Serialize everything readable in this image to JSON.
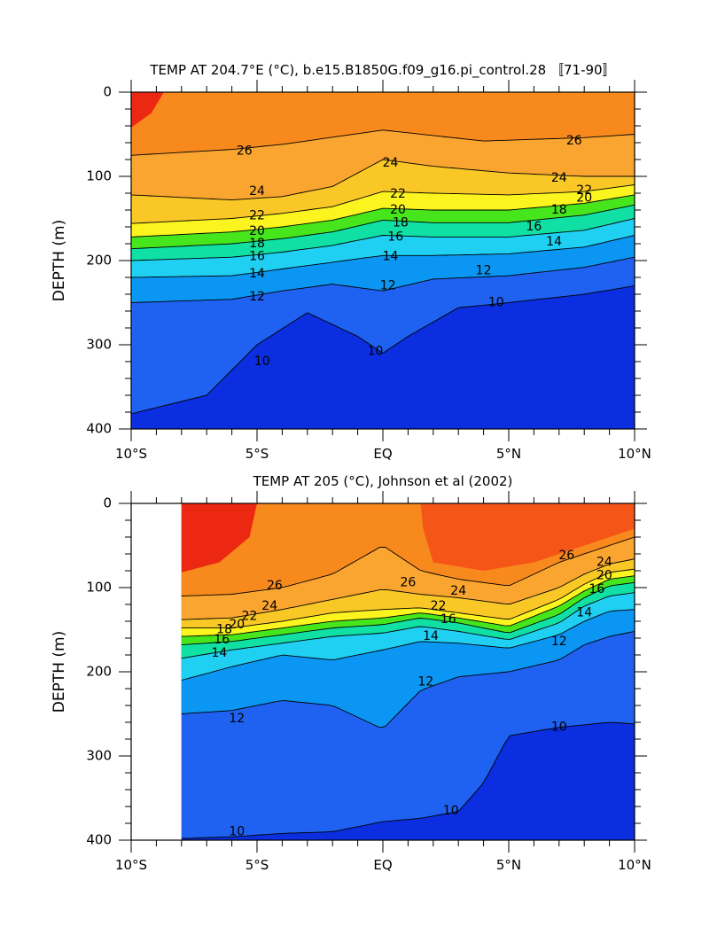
{
  "chart_data": [
    {
      "type": "heatmap",
      "title": "TEMP AT 204.7°E (°C), b.e15.B1850G.f09_g16.pi_control.28 〚71-90〛",
      "ylabel": "DEPTH (m)",
      "xlabel": "",
      "xlim": [
        -10,
        10
      ],
      "ylim": [
        400,
        0
      ],
      "x_ticks": [
        -10,
        -5,
        0,
        5,
        10
      ],
      "x_tick_labels": [
        "10°S",
        "5°S",
        "EQ",
        "5°N",
        "10°N"
      ],
      "y_ticks": [
        0,
        100,
        200,
        300,
        400
      ],
      "y_tick_labels": [
        "0",
        "100",
        "200",
        "300",
        "400"
      ],
      "data_xrange": [
        -10,
        10
      ],
      "contour_levels": [
        10,
        12,
        14,
        16,
        18,
        20,
        22,
        24,
        26
      ],
      "labeled_isotherms": [
        {
          "value": 26,
          "x": [
            -10,
            -6,
            -4,
            0,
            4,
            8,
            10
          ],
          "depth": [
            75,
            68,
            62,
            45,
            58,
            54,
            50
          ]
        },
        {
          "value": 24,
          "x": [
            -10,
            -6,
            -4,
            -2,
            0,
            2,
            5,
            8,
            10
          ],
          "depth": [
            122,
            128,
            124,
            112,
            80,
            88,
            96,
            100,
            100
          ]
        },
        {
          "value": 22,
          "x": [
            -10,
            -6,
            -4,
            -2,
            0,
            2,
            5,
            8,
            10
          ],
          "depth": [
            156,
            150,
            144,
            136,
            118,
            120,
            122,
            118,
            110
          ]
        },
        {
          "value": 20,
          "x": [
            -10,
            -6,
            -4,
            -2,
            0,
            2,
            5,
            8,
            10
          ],
          "depth": [
            172,
            166,
            160,
            152,
            138,
            140,
            140,
            132,
            122
          ]
        },
        {
          "value": 18,
          "x": [
            -10,
            -6,
            -4,
            -2,
            0,
            2,
            5,
            8,
            10
          ],
          "depth": [
            186,
            180,
            174,
            166,
            152,
            155,
            155,
            146,
            134
          ]
        },
        {
          "value": 16,
          "x": [
            -10,
            -6,
            -4,
            -2,
            0,
            2,
            5,
            8,
            10
          ],
          "depth": [
            200,
            196,
            190,
            182,
            170,
            172,
            172,
            164,
            150
          ]
        },
        {
          "value": 14,
          "x": [
            -10,
            -6,
            -4,
            -2,
            0,
            2,
            5,
            8,
            10
          ],
          "depth": [
            220,
            218,
            210,
            202,
            194,
            194,
            192,
            184,
            170
          ]
        },
        {
          "value": 12,
          "x": [
            -10,
            -6,
            -4,
            -2,
            0,
            2,
            5,
            8,
            10
          ],
          "depth": [
            250,
            246,
            236,
            228,
            236,
            222,
            218,
            208,
            196
          ]
        },
        {
          "value": 10,
          "x": [
            -10,
            -7,
            -5,
            -3,
            -1,
            0,
            1,
            3,
            5,
            8,
            10
          ],
          "depth": [
            382,
            360,
            300,
            262,
            290,
            310,
            290,
            256,
            250,
            240,
            230
          ]
        }
      ],
      "contour_labels": [
        {
          "text": "26",
          "x": -5.5,
          "depth": 70
        },
        {
          "text": "24",
          "x": -5.0,
          "depth": 118
        },
        {
          "text": "22",
          "x": -5.0,
          "depth": 147
        },
        {
          "text": "20",
          "x": -5.0,
          "depth": 165
        },
        {
          "text": "18",
          "x": -5.0,
          "depth": 180
        },
        {
          "text": "16",
          "x": -5.0,
          "depth": 195
        },
        {
          "text": "14",
          "x": -5.0,
          "depth": 216
        },
        {
          "text": "12",
          "x": -5.0,
          "depth": 243
        },
        {
          "text": "10",
          "x": -4.8,
          "depth": 320
        },
        {
          "text": "24",
          "x": 0.3,
          "depth": 84
        },
        {
          "text": "22",
          "x": 0.6,
          "depth": 121
        },
        {
          "text": "20",
          "x": 0.6,
          "depth": 140
        },
        {
          "text": "18",
          "x": 0.7,
          "depth": 155
        },
        {
          "text": "16",
          "x": 0.5,
          "depth": 172
        },
        {
          "text": "14",
          "x": 0.3,
          "depth": 195
        },
        {
          "text": "12",
          "x": 0.2,
          "depth": 230
        },
        {
          "text": "10",
          "x": -0.3,
          "depth": 308
        },
        {
          "text": "12",
          "x": 4.0,
          "depth": 212
        },
        {
          "text": "10",
          "x": 4.5,
          "depth": 250
        },
        {
          "text": "14",
          "x": 6.8,
          "depth": 178
        },
        {
          "text": "16",
          "x": 6.0,
          "depth": 160
        },
        {
          "text": "18",
          "x": 7.0,
          "depth": 140
        },
        {
          "text": "20",
          "x": 8.0,
          "depth": 126
        },
        {
          "text": "22",
          "x": 8.0,
          "depth": 117
        },
        {
          "text": "24",
          "x": 7.0,
          "depth": 102
        },
        {
          "text": "26",
          "x": 7.6,
          "depth": 58
        }
      ]
    },
    {
      "type": "heatmap",
      "title": "TEMP AT 205 (°C), Johnson et al (2002)",
      "ylabel": "DEPTH (m)",
      "xlabel": "",
      "xlim": [
        -10,
        10
      ],
      "ylim": [
        400,
        0
      ],
      "x_ticks": [
        -10,
        -5,
        0,
        5,
        10
      ],
      "x_tick_labels": [
        "10°S",
        "5°S",
        "EQ",
        "5°N",
        "10°N"
      ],
      "y_ticks": [
        0,
        100,
        200,
        300,
        400
      ],
      "y_tick_labels": [
        "0",
        "100",
        "200",
        "300",
        "400"
      ],
      "data_xrange": [
        -8,
        10
      ],
      "contour_levels": [
        10,
        12,
        14,
        16,
        18,
        20,
        22,
        24,
        26
      ],
      "labeled_isotherms": [
        {
          "value": 26,
          "x": [
            -8,
            -6,
            -4,
            -2,
            0,
            1.5,
            3,
            5,
            7,
            8,
            9,
            10
          ],
          "depth": [
            110,
            108,
            100,
            84,
            50,
            80,
            90,
            98,
            70,
            60,
            50,
            40
          ]
        },
        {
          "value": 24,
          "x": [
            -8,
            -6,
            -4,
            -2,
            0,
            1.5,
            3,
            5,
            7,
            8,
            9,
            10
          ],
          "depth": [
            138,
            136,
            126,
            114,
            102,
            108,
            112,
            120,
            100,
            84,
            72,
            66
          ]
        },
        {
          "value": 22,
          "x": [
            -8,
            -6,
            -4,
            -2,
            0,
            1.5,
            3,
            5,
            7,
            8,
            9,
            10
          ],
          "depth": [
            148,
            148,
            140,
            130,
            126,
            124,
            130,
            138,
            114,
            96,
            82,
            78
          ]
        },
        {
          "value": 20,
          "x": [
            -8,
            -6,
            -4,
            -2,
            0,
            1.5,
            3,
            5,
            7,
            8,
            9,
            10
          ],
          "depth": [
            158,
            156,
            148,
            140,
            136,
            130,
            136,
            146,
            122,
            104,
            90,
            86
          ]
        },
        {
          "value": 18,
          "x": [
            -8,
            -6,
            -4,
            -2,
            0,
            1.5,
            3,
            5,
            7,
            8,
            9,
            10
          ],
          "depth": [
            168,
            164,
            156,
            148,
            144,
            136,
            142,
            154,
            132,
            112,
            98,
            94
          ]
        },
        {
          "value": 16,
          "x": [
            -8,
            -6,
            -4,
            -2,
            0,
            1.5,
            3,
            5,
            7,
            8,
            9,
            10
          ],
          "depth": [
            184,
            174,
            166,
            158,
            154,
            146,
            152,
            162,
            142,
            122,
            110,
            106
          ]
        },
        {
          "value": 14,
          "x": [
            -8,
            -6,
            -4,
            -2,
            0,
            1.5,
            3,
            5,
            7,
            8,
            9,
            10
          ],
          "depth": [
            210,
            194,
            180,
            186,
            174,
            164,
            166,
            172,
            156,
            140,
            128,
            126
          ]
        },
        {
          "value": 12,
          "x": [
            -8,
            -6,
            -4,
            -2,
            0,
            1.5,
            3,
            5,
            7,
            8,
            9,
            10
          ],
          "depth": [
            250,
            246,
            234,
            240,
            268,
            222,
            206,
            200,
            186,
            168,
            158,
            152
          ]
        },
        {
          "value": 10,
          "x": [
            -8,
            -6,
            -4,
            -2,
            0,
            1.5,
            3,
            4,
            5,
            7,
            9,
            10
          ],
          "depth": [
            398,
            396,
            392,
            390,
            378,
            374,
            366,
            332,
            276,
            266,
            260,
            262
          ]
        }
      ],
      "contour_labels": [
        {
          "text": "26",
          "x": -4.3,
          "depth": 98
        },
        {
          "text": "24",
          "x": -4.5,
          "depth": 122
        },
        {
          "text": "22",
          "x": -5.3,
          "depth": 134
        },
        {
          "text": "20",
          "x": -5.8,
          "depth": 144
        },
        {
          "text": "18",
          "x": -6.3,
          "depth": 150
        },
        {
          "text": "16",
          "x": -6.4,
          "depth": 162
        },
        {
          "text": "14",
          "x": -6.5,
          "depth": 178
        },
        {
          "text": "12",
          "x": -5.8,
          "depth": 256
        },
        {
          "text": "10",
          "x": -5.8,
          "depth": 390
        },
        {
          "text": "26",
          "x": 1.0,
          "depth": 94
        },
        {
          "text": "24",
          "x": 3.0,
          "depth": 104
        },
        {
          "text": "22",
          "x": 2.2,
          "depth": 122
        },
        {
          "text": "16",
          "x": 2.6,
          "depth": 138
        },
        {
          "text": "14",
          "x": 1.9,
          "depth": 158
        },
        {
          "text": "12",
          "x": 1.7,
          "depth": 212
        },
        {
          "text": "10",
          "x": 2.7,
          "depth": 365
        },
        {
          "text": "12",
          "x": 7.0,
          "depth": 164
        },
        {
          "text": "14",
          "x": 8.0,
          "depth": 130
        },
        {
          "text": "10",
          "x": 7.0,
          "depth": 266
        },
        {
          "text": "26",
          "x": 7.3,
          "depth": 62
        },
        {
          "text": "24",
          "x": 8.8,
          "depth": 70
        },
        {
          "text": "16",
          "x": 8.5,
          "depth": 102
        },
        {
          "text": "20",
          "x": 8.8,
          "depth": 86
        }
      ]
    }
  ]
}
